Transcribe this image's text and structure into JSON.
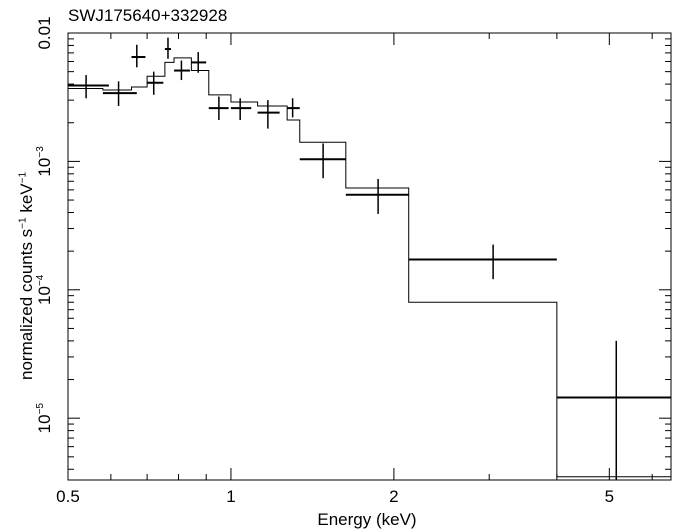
{
  "chart_data": {
    "type": "scatter",
    "title": "SWJ175640+332928",
    "xlabel": "Energy (keV)",
    "ylabel_parts": [
      "normalized counts s",
      "−1",
      " keV",
      "−1"
    ],
    "x_scale": "log",
    "y_scale": "log",
    "xlim": [
      0.5,
      6.5
    ],
    "ylim": [
      3.3e-06,
      0.01
    ],
    "x_ticks": [
      {
        "value": 0.5,
        "label": "0.5"
      },
      {
        "value": 1,
        "label": "1"
      },
      {
        "value": 2,
        "label": "2"
      },
      {
        "value": 5,
        "label": "5"
      }
    ],
    "y_ticks": [
      {
        "value": 0.01,
        "base": "0.01",
        "exp": ""
      },
      {
        "value": 0.001,
        "base": "10",
        "exp": "−3"
      },
      {
        "value": 0.0001,
        "base": "10",
        "exp": "−4"
      },
      {
        "value": 1e-05,
        "base": "10",
        "exp": "−5"
      }
    ],
    "grid": false,
    "series": [
      {
        "points": [
          {
            "x": 0.54,
            "x_lo": 0.5,
            "x_hi": 0.595,
            "y": 0.0039,
            "y_lo": 0.0031,
            "y_hi": 0.0047
          },
          {
            "x": 0.62,
            "x_lo": 0.58,
            "x_hi": 0.67,
            "y": 0.0034,
            "y_lo": 0.0027,
            "y_hi": 0.0042
          },
          {
            "x": 0.67,
            "x_lo": 0.655,
            "x_hi": 0.695,
            "y": 0.0065,
            "y_lo": 0.0054,
            "y_hi": 0.0081
          },
          {
            "x": 0.72,
            "x_lo": 0.7,
            "x_hi": 0.75,
            "y": 0.0041,
            "y_lo": 0.0033,
            "y_hi": 0.005
          },
          {
            "x": 0.765,
            "x_lo": 0.755,
            "x_hi": 0.775,
            "y": 0.0075,
            "y_lo": 0.0063,
            "y_hi": 0.0092
          },
          {
            "x": 0.81,
            "x_lo": 0.785,
            "x_hi": 0.84,
            "y": 0.0051,
            "y_lo": 0.0043,
            "y_hi": 0.0061
          },
          {
            "x": 0.87,
            "x_lo": 0.845,
            "x_hi": 0.9,
            "y": 0.0059,
            "y_lo": 0.0049,
            "y_hi": 0.0071
          },
          {
            "x": 0.95,
            "x_lo": 0.91,
            "x_hi": 0.99,
            "y": 0.0026,
            "y_lo": 0.0021,
            "y_hi": 0.0032
          },
          {
            "x": 1.04,
            "x_lo": 1.0,
            "x_hi": 1.09,
            "y": 0.0026,
            "y_lo": 0.0021,
            "y_hi": 0.0031
          },
          {
            "x": 1.17,
            "x_lo": 1.12,
            "x_hi": 1.23,
            "y": 0.0024,
            "y_lo": 0.0018,
            "y_hi": 0.003
          },
          {
            "x": 1.3,
            "x_lo": 1.27,
            "x_hi": 1.34,
            "y": 0.0026,
            "y_lo": 0.0022,
            "y_hi": 0.0031
          },
          {
            "x": 1.48,
            "x_lo": 1.34,
            "x_hi": 1.63,
            "y": 0.00104,
            "y_lo": 0.00074,
            "y_hi": 0.00138
          },
          {
            "x": 1.87,
            "x_lo": 1.63,
            "x_hi": 2.13,
            "y": 0.00055,
            "y_lo": 0.00039,
            "y_hi": 0.00073
          },
          {
            "x": 3.05,
            "x_lo": 2.13,
            "x_hi": 4.0,
            "y": 0.000172,
            "y_lo": 0.000121,
            "y_hi": 0.000225
          },
          {
            "x": 5.15,
            "x_lo": 4.0,
            "x_hi": 6.5,
            "y": 1.45e-05,
            "y_lo": 3.3e-06,
            "y_hi": 4e-05
          }
        ]
      },
      {
        "model_steps": [
          {
            "x0": 0.5,
            "x1": 0.58,
            "y": 0.0037
          },
          {
            "x0": 0.58,
            "x1": 0.655,
            "y": 0.0036
          },
          {
            "x0": 0.655,
            "x1": 0.7,
            "y": 0.0038
          },
          {
            "x0": 0.7,
            "x1": 0.755,
            "y": 0.0046
          },
          {
            "x0": 0.755,
            "x1": 0.785,
            "y": 0.0059
          },
          {
            "x0": 0.785,
            "x1": 0.845,
            "y": 0.0064
          },
          {
            "x0": 0.845,
            "x1": 0.91,
            "y": 0.0051
          },
          {
            "x0": 0.91,
            "x1": 1.0,
            "y": 0.0033
          },
          {
            "x0": 1.0,
            "x1": 1.12,
            "y": 0.0029
          },
          {
            "x0": 1.12,
            "x1": 1.27,
            "y": 0.0027
          },
          {
            "x0": 1.27,
            "x1": 1.34,
            "y": 0.0021
          },
          {
            "x0": 1.34,
            "x1": 1.63,
            "y": 0.00141
          },
          {
            "x0": 1.63,
            "x1": 2.13,
            "y": 0.00062
          },
          {
            "x0": 2.13,
            "x1": 4.0,
            "y": 8e-05
          },
          {
            "x0": 4.0,
            "x1": 6.5,
            "y": 3.5e-06
          }
        ]
      }
    ]
  }
}
